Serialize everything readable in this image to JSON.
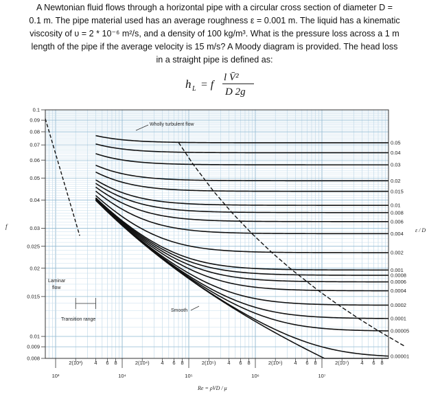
{
  "problem": {
    "lines": [
      "A Newtonian fluid flows through a horizontal pipe with a circular cross section of diameter D =",
      "0.1 m. The pipe material used has an average roughness ε = 0.001 m. The liquid has a kinematic",
      "viscosity of υ = 2 * 10⁻⁶ m²/s, and a density of 100 kg/m³. What is the pressure loss across a 1 m",
      "length of the pipe if the average velocity is 15 m/s? A Moody diagram is provided. The head loss",
      "in a straight pipe is defined as:"
    ]
  },
  "formula": {
    "lhs": "h",
    "lhs_sub": "L",
    "eq": "= f",
    "num": "l V̄²",
    "den": "D 2g"
  },
  "chart_data": {
    "type": "line",
    "xscale": "log",
    "yscale": "log",
    "xlim": [
      700,
      100000000
    ],
    "ylim": [
      0.008,
      0.1
    ],
    "ylabel": "f",
    "xlabel": "Re = ρVD / μ",
    "right_label": "ε / D",
    "y_ticks": [
      "0.1",
      "0.09",
      "0.08",
      "0.07",
      "0.06",
      "0.05",
      "0.04",
      "0.03",
      "0.025",
      "0.02",
      "0.015",
      "0.01",
      "0.009",
      "0.008"
    ],
    "y_tick_values": [
      0.1,
      0.09,
      0.08,
      0.07,
      0.06,
      0.05,
      0.04,
      0.03,
      0.025,
      0.02,
      0.015,
      0.01,
      0.009,
      0.008
    ],
    "x_major_ticks": [
      "10³",
      "10⁴",
      "10⁵",
      "10⁶",
      "10⁷"
    ],
    "x_major_values": [
      1000,
      10000,
      100000,
      1000000,
      10000000
    ],
    "x_minor_labels": [
      {
        "text": "2(10³)",
        "x": 2000
      },
      {
        "text": "4",
        "x": 4000
      },
      {
        "text": "6",
        "x": 6000
      },
      {
        "text": "8",
        "x": 8000
      },
      {
        "text": "2(10⁴)",
        "x": 20000
      },
      {
        "text": "4",
        "x": 40000
      },
      {
        "text": "6",
        "x": 60000
      },
      {
        "text": "8",
        "x": 80000
      },
      {
        "text": "2(10⁵)",
        "x": 200000
      },
      {
        "text": "4",
        "x": 400000
      },
      {
        "text": "6",
        "x": 600000
      },
      {
        "text": "8",
        "x": 800000
      },
      {
        "text": "2(10⁶)",
        "x": 2000000
      },
      {
        "text": "4",
        "x": 4000000
      },
      {
        "text": "6",
        "x": 6000000
      },
      {
        "text": "8",
        "x": 8000000
      },
      {
        "text": "2(10⁷)",
        "x": 20000000
      },
      {
        "text": "4",
        "x": 40000000
      },
      {
        "text": "6",
        "x": 60000000
      },
      {
        "text": "8",
        "x": 80000000
      }
    ],
    "roughness_labels": [
      "0.05",
      "0.04",
      "0.03",
      "0.02",
      "0.015",
      "0.01",
      "0.008",
      "0.006",
      "0.004",
      "0.002",
      "0.001",
      "0.0008",
      "0.0006",
      "0.0004",
      "0.0002",
      "0.0001",
      "0.00005",
      "0.00001"
    ],
    "roughness_values": [
      0.05,
      0.04,
      0.03,
      0.02,
      0.015,
      0.01,
      0.008,
      0.006,
      0.004,
      0.002,
      0.001,
      0.0008,
      0.0006,
      0.0004,
      0.0002,
      0.0001,
      5e-05,
      1e-05
    ],
    "annotations": {
      "wholly_turbulent": "Wholly turbulent flow",
      "laminar": [
        "Laminar",
        "flow"
      ],
      "transition": "Transition range",
      "smooth": "Smooth"
    },
    "laminar_range": [
      700,
      2300
    ]
  }
}
